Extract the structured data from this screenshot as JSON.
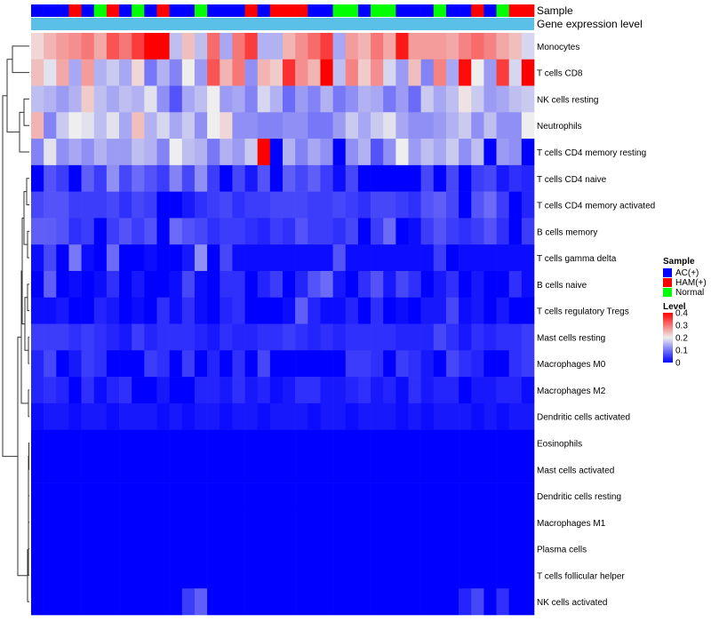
{
  "chart_data": {
    "type": "heatmap",
    "annotation_labels": [
      "Sample",
      "Gene expression level"
    ],
    "rows": [
      "Monocytes",
      "T cells CD8",
      "NK cells resting",
      "Neutrophils",
      "T cells CD4 memory resting",
      "T cells CD4 naive",
      "T cells CD4 memory activated",
      "B cells memory",
      "T cells gamma delta",
      "B cells naive",
      "T cells regulatory  Tregs",
      "Mast cells resting",
      "Macrophages M0",
      "Macrophages M2",
      "Dendritic cells activated",
      "Eosinophils",
      "Mast cells activated",
      "Dendritic cells resting",
      "Macrophages M1",
      "Plasma cells",
      "T cells follicular helper",
      "NK cells activated"
    ],
    "sample_groups": [
      "AC",
      "AC",
      "AC",
      "HAM",
      "AC",
      "Normal",
      "HAM",
      "AC",
      "Normal",
      "AC",
      "HAM",
      "AC",
      "AC",
      "Normal",
      "AC",
      "AC",
      "AC",
      "HAM",
      "AC",
      "HAM",
      "HAM",
      "HAM",
      "AC",
      "AC",
      "Normal",
      "Normal",
      "AC",
      "Normal",
      "Normal",
      "AC",
      "AC",
      "AC",
      "Normal",
      "AC",
      "AC",
      "HAM",
      "AC",
      "Normal",
      "HAM",
      "HAM"
    ],
    "values": [
      [
        0.22,
        0.25,
        0.27,
        0.28,
        0.3,
        0.26,
        0.33,
        0.3,
        0.35,
        0.4,
        0.4,
        0.16,
        0.24,
        0.16,
        0.31,
        0.14,
        0.3,
        0.35,
        0.15,
        0.15,
        0.25,
        0.28,
        0.31,
        0.35,
        0.14,
        0.27,
        0.25,
        0.3,
        0.26,
        0.38,
        0.27,
        0.27,
        0.27,
        0.26,
        0.29,
        0.31,
        0.29,
        0.26,
        0.24,
        0.18
      ],
      [
        0.24,
        0.19,
        0.26,
        0.14,
        0.27,
        0.15,
        0.17,
        0.14,
        0.22,
        0.1,
        0.15,
        0.11,
        0.2,
        0.13,
        0.33,
        0.25,
        0.3,
        0.12,
        0.25,
        0.23,
        0.36,
        0.28,
        0.25,
        0.4,
        0.16,
        0.29,
        0.23,
        0.28,
        0.18,
        0.13,
        0.24,
        0.11,
        0.29,
        0.14,
        0.39,
        0.2,
        0.13,
        0.35,
        0.18,
        0.4
      ],
      [
        0.16,
        0.15,
        0.13,
        0.15,
        0.23,
        0.16,
        0.14,
        0.16,
        0.15,
        0.19,
        0.12,
        0.07,
        0.14,
        0.16,
        0.2,
        0.13,
        0.14,
        0.11,
        0.18,
        0.15,
        0.09,
        0.13,
        0.11,
        0.15,
        0.1,
        0.12,
        0.15,
        0.14,
        0.1,
        0.13,
        0.09,
        0.17,
        0.14,
        0.16,
        0.21,
        0.17,
        0.13,
        0.14,
        0.16,
        0.17
      ],
      [
        0.25,
        0.11,
        0.17,
        0.2,
        0.19,
        0.16,
        0.19,
        0.14,
        0.24,
        0.15,
        0.18,
        0.14,
        0.17,
        0.12,
        0.2,
        0.22,
        0.12,
        0.12,
        0.11,
        0.11,
        0.12,
        0.12,
        0.1,
        0.1,
        0.13,
        0.17,
        0.14,
        0.17,
        0.19,
        0.14,
        0.12,
        0.12,
        0.13,
        0.15,
        0.17,
        0.12,
        0.16,
        0.12,
        0.12,
        0.2
      ],
      [
        0.11,
        0.19,
        0.12,
        0.14,
        0.12,
        0.15,
        0.13,
        0.13,
        0.16,
        0.15,
        0.11,
        0.2,
        0.16,
        0.15,
        0.1,
        0.15,
        0.13,
        0.17,
        0.4,
        0.0,
        0.15,
        0.11,
        0.14,
        0.12,
        0.0,
        0.12,
        0.15,
        0.07,
        0.12,
        0.2,
        0.13,
        0.16,
        0.14,
        0.17,
        0.12,
        0.16,
        0.0,
        0.13,
        0.12,
        0.0
      ],
      [
        0.0,
        0.07,
        0.05,
        0.0,
        0.08,
        0.05,
        0.12,
        0.06,
        0.09,
        0.07,
        0.05,
        0.11,
        0.06,
        0.12,
        0.05,
        0.0,
        0.06,
        0.02,
        0.07,
        0.0,
        0.08,
        0.06,
        0.08,
        0.05,
        0.01,
        0.06,
        0.0,
        0.0,
        0.0,
        0.0,
        0.0,
        0.06,
        0.0,
        0.06,
        0.0,
        0.05,
        0.06,
        0.02,
        0.04,
        0.03
      ],
      [
        0.06,
        0.07,
        0.07,
        0.05,
        0.05,
        0.05,
        0.06,
        0.04,
        0.06,
        0.05,
        0.0,
        0.0,
        0.02,
        0.04,
        0.05,
        0.06,
        0.04,
        0.05,
        0.05,
        0.06,
        0.06,
        0.06,
        0.05,
        0.05,
        0.06,
        0.05,
        0.04,
        0.06,
        0.06,
        0.05,
        0.04,
        0.07,
        0.08,
        0.06,
        0.0,
        0.07,
        0.09,
        0.05,
        0.0,
        0.03
      ],
      [
        0.08,
        0.08,
        0.07,
        0.04,
        0.05,
        0.0,
        0.05,
        0.07,
        0.05,
        0.07,
        0.0,
        0.09,
        0.07,
        0.06,
        0.04,
        0.05,
        0.05,
        0.04,
        0.03,
        0.05,
        0.04,
        0.07,
        0.05,
        0.05,
        0.04,
        0.06,
        0.0,
        0.05,
        0.09,
        0.0,
        0.01,
        0.05,
        0.07,
        0.05,
        0.04,
        0.05,
        0.07,
        0.04,
        0.0,
        0.05
      ],
      [
        0.01,
        0.06,
        0.0,
        0.1,
        0.01,
        0.0,
        0.09,
        0.0,
        0.0,
        0.01,
        0.0,
        0.0,
        0.02,
        0.12,
        0.0,
        0.06,
        0.01,
        0.01,
        0.01,
        0.01,
        0.01,
        0.01,
        0.01,
        0.01,
        0.07,
        0.01,
        0.01,
        0.01,
        0.01,
        0.01,
        0.01,
        0.01,
        0.05,
        0.0,
        0.01,
        0.01,
        0.01,
        0.01,
        0.01,
        0.01
      ],
      [
        0.0,
        0.08,
        0.0,
        0.01,
        0.0,
        0.01,
        0.04,
        0.0,
        0.02,
        0.0,
        0.0,
        0.01,
        0.06,
        0.01,
        0.0,
        0.04,
        0.04,
        0.0,
        0.03,
        0.05,
        0.0,
        0.03,
        0.07,
        0.09,
        0.02,
        0.0,
        0.04,
        0.07,
        0.02,
        0.06,
        0.04,
        0.0,
        0.02,
        0.04,
        0.0,
        0.02,
        0.0,
        0.0,
        0.04,
        0.01
      ],
      [
        0.01,
        0.01,
        0.02,
        0.0,
        0.0,
        0.03,
        0.02,
        0.0,
        0.01,
        0.0,
        0.04,
        0.01,
        0.04,
        0.01,
        0.0,
        0.03,
        0.04,
        0.0,
        0.0,
        0.0,
        0.01,
        0.08,
        0.03,
        0.01,
        0.01,
        0.03,
        0.0,
        0.04,
        0.0,
        0.01,
        0.0,
        0.02,
        0.02,
        0.06,
        0.01,
        0.02,
        0.0,
        0.02,
        0.0,
        0.0
      ],
      [
        0.05,
        0.05,
        0.05,
        0.04,
        0.05,
        0.04,
        0.03,
        0.02,
        0.05,
        0.03,
        0.04,
        0.04,
        0.04,
        0.03,
        0.02,
        0.04,
        0.03,
        0.03,
        0.04,
        0.04,
        0.05,
        0.04,
        0.03,
        0.04,
        0.03,
        0.04,
        0.04,
        0.04,
        0.04,
        0.03,
        0.03,
        0.03,
        0.06,
        0.04,
        0.02,
        0.04,
        0.03,
        0.04,
        0.04,
        0.05
      ],
      [
        0.03,
        0.06,
        0.0,
        0.02,
        0.05,
        0.04,
        0.0,
        0.0,
        0.0,
        0.05,
        0.04,
        0.0,
        0.05,
        0.0,
        0.03,
        0.0,
        0.04,
        0.0,
        0.06,
        0.0,
        0.0,
        0.0,
        0.0,
        0.0,
        0.0,
        0.05,
        0.05,
        0.04,
        0.0,
        0.05,
        0.04,
        0.02,
        0.0,
        0.06,
        0.04,
        0.03,
        0.0,
        0.0,
        0.04,
        0.05
      ],
      [
        0.03,
        0.04,
        0.03,
        0.0,
        0.04,
        0.01,
        0.03,
        0.04,
        0.0,
        0.0,
        0.02,
        0.0,
        0.0,
        0.03,
        0.03,
        0.02,
        0.04,
        0.02,
        0.03,
        0.01,
        0.02,
        0.04,
        0.04,
        0.02,
        0.02,
        0.03,
        0.04,
        0.02,
        0.03,
        0.01,
        0.04,
        0.02,
        0.03,
        0.03,
        0.0,
        0.02,
        0.02,
        0.03,
        0.03,
        0.01
      ],
      [
        0.01,
        0.02,
        0.02,
        0.01,
        0.02,
        0.02,
        0.01,
        0.02,
        0.02,
        0.02,
        0.01,
        0.02,
        0.01,
        0.02,
        0.02,
        0.01,
        0.02,
        0.02,
        0.01,
        0.02,
        0.02,
        0.02,
        0.01,
        0.02,
        0.02,
        0.01,
        0.02,
        0.02,
        0.02,
        0.01,
        0.02,
        0.01,
        0.02,
        0.02,
        0.02,
        0.01,
        0.02,
        0.01,
        0.02,
        0.02
      ],
      [
        0,
        0,
        0,
        0,
        0,
        0,
        0,
        0,
        0,
        0,
        0,
        0,
        0,
        0,
        0,
        0,
        0,
        0,
        0,
        0,
        0,
        0,
        0,
        0,
        0,
        0,
        0,
        0,
        0,
        0,
        0,
        0,
        0,
        0,
        0,
        0,
        0,
        0,
        0,
        0
      ],
      [
        0,
        0,
        0,
        0,
        0,
        0,
        0,
        0,
        0,
        0,
        0,
        0,
        0,
        0,
        0,
        0,
        0,
        0,
        0,
        0,
        0,
        0,
        0,
        0,
        0,
        0,
        0,
        0,
        0,
        0,
        0,
        0,
        0,
        0,
        0,
        0,
        0,
        0,
        0,
        0
      ],
      [
        0,
        0,
        0,
        0,
        0,
        0,
        0,
        0,
        0,
        0,
        0,
        0,
        0,
        0,
        0,
        0,
        0,
        0,
        0,
        0,
        0,
        0,
        0,
        0,
        0,
        0,
        0,
        0,
        0,
        0,
        0,
        0,
        0,
        0,
        0,
        0,
        0,
        0,
        0,
        0
      ],
      [
        0,
        0,
        0,
        0,
        0,
        0,
        0,
        0,
        0,
        0,
        0,
        0,
        0,
        0,
        0,
        0,
        0,
        0,
        0,
        0,
        0,
        0,
        0,
        0,
        0,
        0,
        0,
        0,
        0,
        0,
        0,
        0,
        0,
        0,
        0,
        0,
        0,
        0,
        0,
        0
      ],
      [
        0,
        0,
        0,
        0,
        0,
        0,
        0,
        0,
        0,
        0,
        0,
        0,
        0,
        0,
        0,
        0,
        0,
        0,
        0,
        0,
        0,
        0,
        0,
        0,
        0,
        0,
        0,
        0,
        0,
        0,
        0,
        0,
        0,
        0,
        0,
        0,
        0,
        0,
        0,
        0
      ],
      [
        0,
        0,
        0,
        0,
        0,
        0,
        0,
        0,
        0,
        0,
        0,
        0,
        0,
        0,
        0,
        0,
        0,
        0,
        0,
        0,
        0,
        0,
        0,
        0,
        0,
        0,
        0,
        0,
        0,
        0,
        0,
        0,
        0,
        0,
        0,
        0,
        0,
        0,
        0,
        0
      ],
      [
        0,
        0,
        0,
        0,
        0,
        0,
        0,
        0,
        0,
        0,
        0,
        0,
        0.05,
        0.08,
        0,
        0,
        0,
        0,
        0,
        0,
        0,
        0,
        0,
        0,
        0,
        0,
        0,
        0,
        0,
        0,
        0,
        0,
        0,
        0,
        0.03,
        0.06,
        0,
        0.04,
        0,
        0
      ]
    ],
    "legend": {
      "sample_title": "Sample",
      "sample_entries": [
        {
          "key": "AC",
          "label": "AC(+)",
          "color": "#0000ff"
        },
        {
          "key": "HAM",
          "label": "HAM(+)",
          "color": "#ff0000"
        },
        {
          "key": "Normal",
          "label": "Normal",
          "color": "#00ff00"
        }
      ],
      "level_title": "Level",
      "level_ticks": [
        0.4,
        0.3,
        0.2,
        0.1,
        0
      ],
      "level_tick_labels": [
        "0.4",
        "0.3",
        "0.2",
        "0.1",
        "0"
      ],
      "level_range": [
        0,
        0.4
      ]
    },
    "colors": {
      "low": "#0000ff",
      "mid": "#eeeeee",
      "high": "#ff0000",
      "expression_bar": "#5bc0e8"
    }
  }
}
